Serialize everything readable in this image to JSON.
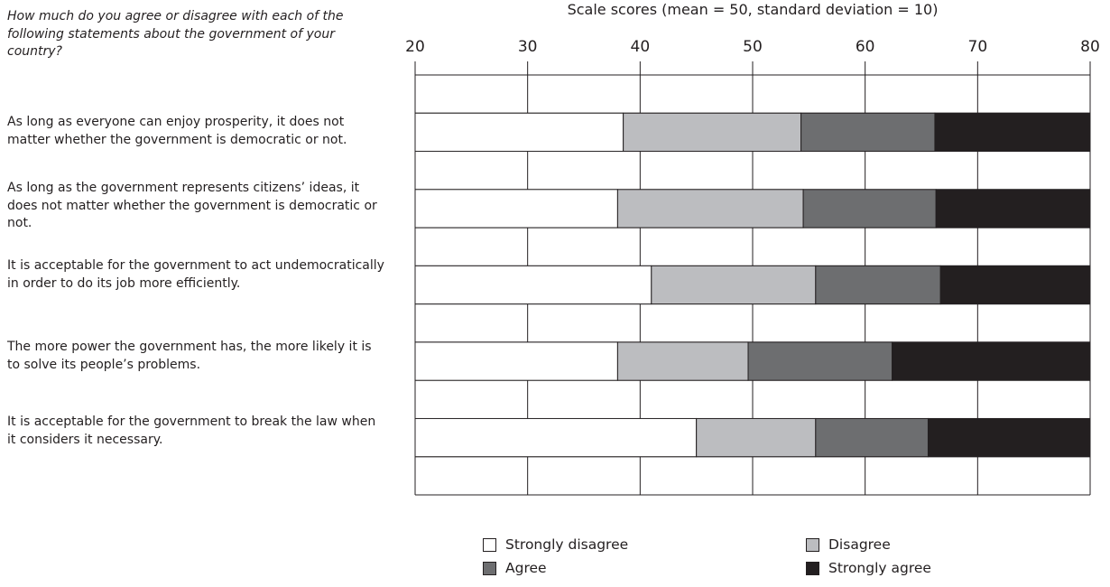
{
  "question": "How much do you agree or disagree with each of the following statements about the government of your country?",
  "statements": [
    "As long as everyone can enjoy prosperity, it does not matter whether the government is democratic or not.",
    "As long as the government represents citizens’ ideas, it does not matter whether the government is democratic or not.",
    "It is acceptable for the government to act undemocratically in order to do its job more efficiently.",
    "The more power the government has, the more likely it is to solve its people’s problems.",
    "It is acceptable for the government to break the law when it considers it necessary."
  ],
  "colors": {
    "strongly_disagree": "#ffffff",
    "disagree": "#bcbdc0",
    "agree": "#6d6e70",
    "strongly_agree": "#231f20",
    "line": "#231f20"
  },
  "chart_data": {
    "type": "bar",
    "orientation": "horizontal",
    "stacked": true,
    "title": "Scale scores (mean = 50, standard deviation = 10)",
    "xlim": [
      20,
      80
    ],
    "xticks": [
      "20",
      "30",
      "40",
      "50",
      "60",
      "70",
      "80"
    ],
    "grid": true,
    "legend_position": "bottom",
    "categories": [
      "As long as everyone can enjoy prosperity, it does not matter whether the government is democratic or not.",
      "As long as the government represents citizens’ ideas, it does not matter whether the government is democratic or not.",
      "It is acceptable for the government to act undemocratically in order to do its job more efficiently.",
      "The more power the government has, the more likely it is to solve its people’s problems.",
      "It is acceptable for the government to break the law when it considers it necessary."
    ],
    "series": [
      {
        "name": "Strongly disagree",
        "color_key": "strongly_disagree",
        "ranges": [
          [
            20,
            38.5
          ],
          [
            20,
            38.0
          ],
          [
            20,
            41.0
          ],
          [
            20,
            38.0
          ],
          [
            20,
            45.0
          ]
        ]
      },
      {
        "name": "Disagree",
        "color_key": "disagree",
        "ranges": [
          [
            38.5,
            54.3
          ],
          [
            38.0,
            54.5
          ],
          [
            41.0,
            55.6
          ],
          [
            38.0,
            49.6
          ],
          [
            45.0,
            55.6
          ]
        ]
      },
      {
        "name": "Agree",
        "color_key": "agree",
        "ranges": [
          [
            54.3,
            66.2
          ],
          [
            54.5,
            66.3
          ],
          [
            55.6,
            66.7
          ],
          [
            49.6,
            62.4
          ],
          [
            55.6,
            65.6
          ]
        ]
      },
      {
        "name": "Strongly agree",
        "color_key": "strongly_agree",
        "ranges": [
          [
            66.2,
            80
          ],
          [
            66.3,
            80
          ],
          [
            66.7,
            80
          ],
          [
            62.4,
            80
          ],
          [
            65.6,
            80
          ]
        ]
      }
    ]
  }
}
